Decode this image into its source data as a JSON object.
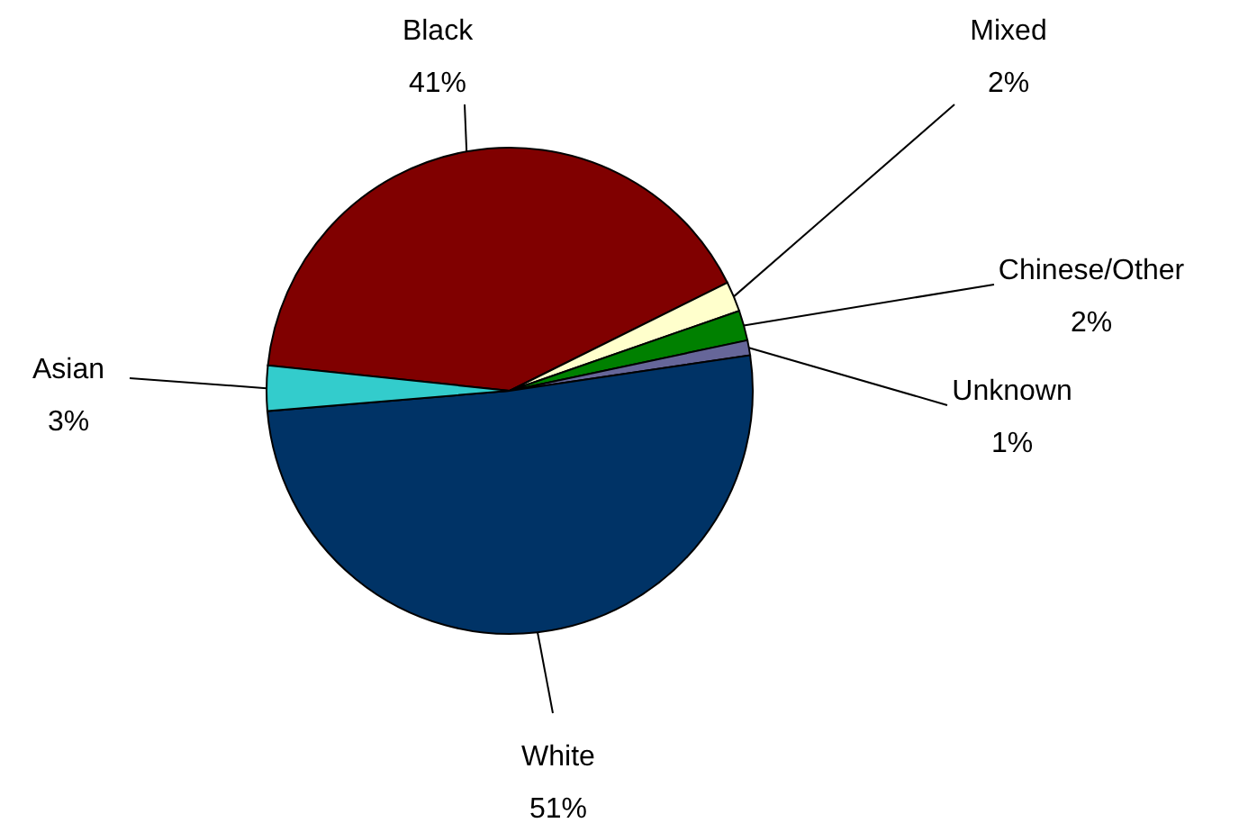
{
  "chart_data": {
    "type": "pie",
    "categories": [
      "Black",
      "Mixed",
      "Chinese/Other",
      "Unknown",
      "White",
      "Asian"
    ],
    "values": [
      41,
      2,
      2,
      1,
      51,
      3
    ],
    "value_labels": [
      "41%",
      "2%",
      "2%",
      "1%",
      "51%",
      "3%"
    ],
    "colors": [
      "#800000",
      "#ffffcc",
      "#008000",
      "#666699",
      "#003366",
      "#33cccc"
    ]
  }
}
